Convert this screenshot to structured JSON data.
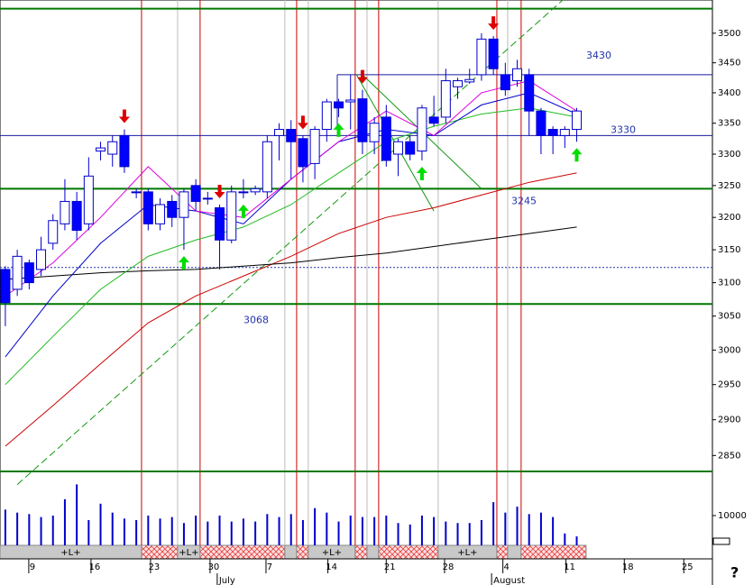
{
  "chart_data": {
    "type": "candlestick",
    "log_scale": true,
    "xlim": [
      -0.45,
      59.4
    ],
    "ylim": [
      2807,
      3557
    ],
    "yticks": [
      3500,
      3450,
      3400,
      3350,
      3300,
      3250,
      3200,
      3150,
      3100,
      3050,
      3000,
      2950,
      2900,
      2850
    ],
    "xticks": [
      {
        "value": 2.27,
        "label": "9"
      },
      {
        "value": 7.5,
        "label": "16"
      },
      {
        "value": 12.5,
        "label": "23"
      },
      {
        "value": 17.5,
        "label": "30"
      },
      {
        "value": 22.2,
        "label": "7"
      },
      {
        "value": 27.4,
        "label": "14"
      },
      {
        "value": 32.3,
        "label": "21"
      },
      {
        "value": 37.2,
        "label": "28"
      },
      {
        "value": 42.1,
        "label": "4"
      },
      {
        "value": 47.4,
        "label": "11"
      },
      {
        "value": 52.3,
        "label": "18"
      },
      {
        "value": 57.3,
        "label": "25"
      }
    ],
    "month_ticks": [
      {
        "value": 17.95,
        "label": "July"
      },
      {
        "value": 41.0,
        "label": "August"
      }
    ],
    "up_color": "#ffffff",
    "down_color": "#0000ff",
    "open": [
      3120,
      3090,
      3130,
      3120,
      3160,
      3190,
      3225,
      3190,
      3305,
      3300,
      3330,
      3240,
      3240,
      3190,
      3225,
      3200,
      3250,
      3230,
      3215,
      3165,
      3240,
      3240,
      3240,
      3330,
      3340,
      3325,
      3285,
      3340,
      3385,
      3385,
      3390,
      3320,
      3360,
      3300,
      3320,
      3305,
      3360,
      3360,
      3410,
      3418,
      3430,
      3490,
      3430,
      3420,
      3430,
      3370,
      3340,
      3330,
      3340
    ],
    "high": [
      3125,
      3150,
      3135,
      3170,
      3205,
      3260,
      3240,
      3295,
      3320,
      3330,
      3340,
      3245,
      3245,
      3230,
      3235,
      3245,
      3260,
      3240,
      3220,
      3250,
      3260,
      3250,
      3330,
      3350,
      3355,
      3330,
      3345,
      3390,
      3390,
      3430,
      3405,
      3360,
      3380,
      3325,
      3330,
      3380,
      3395,
      3440,
      3425,
      3440,
      3500,
      3495,
      3450,
      3455,
      3440,
      3375,
      3345,
      3345,
      3375
    ],
    "low": [
      3035,
      3080,
      3090,
      3110,
      3150,
      3180,
      3165,
      3180,
      3290,
      3280,
      3270,
      3230,
      3180,
      3180,
      3185,
      3150,
      3210,
      3220,
      3120,
      3160,
      3230,
      3235,
      3230,
      3290,
      3260,
      3255,
      3260,
      3320,
      3360,
      3340,
      3300,
      3300,
      3280,
      3265,
      3290,
      3290,
      3345,
      3350,
      3390,
      3415,
      3420,
      3430,
      3395,
      3410,
      3330,
      3300,
      3300,
      3310,
      3320
    ],
    "close": [
      3070,
      3140,
      3100,
      3150,
      3195,
      3225,
      3180,
      3265,
      3310,
      3320,
      3280,
      3240,
      3190,
      3220,
      3200,
      3240,
      3225,
      3230,
      3165,
      3240,
      3240,
      3245,
      3320,
      3340,
      3320,
      3280,
      3340,
      3385,
      3375,
      3388,
      3320,
      3350,
      3290,
      3320,
      3300,
      3375,
      3350,
      3420,
      3420,
      3422,
      3490,
      3440,
      3405,
      3440,
      3370,
      3330,
      3330,
      3340,
      3370
    ],
    "volume": [
      12000,
      11000,
      10500,
      9500,
      10000,
      15500,
      20500,
      8500,
      14000,
      11000,
      9000,
      8500,
      10000,
      9000,
      9500,
      7500,
      10000,
      8000,
      10000,
      8000,
      9000,
      8000,
      10500,
      9500,
      10500,
      8500,
      12500,
      11000,
      8000,
      10000,
      9500,
      9500,
      10000,
      7500,
      7000,
      10000,
      9500,
      8000,
      7500,
      7500,
      8500,
      14500,
      11000,
      13000,
      10500,
      11000,
      9500,
      4000,
      3000
    ],
    "vlim": [
      0,
      20900
    ],
    "volume_ticks": [
      10000
    ],
    "ma_x": [
      0,
      4,
      8,
      12,
      16,
      20,
      24,
      28,
      32,
      36,
      40,
      44,
      48
    ],
    "moving_averages": [
      {
        "color": "#cc0000",
        "values": [
          2863,
          2920,
          2980,
          3040,
          3080,
          3110,
          3140,
          3175,
          3200,
          3215,
          3235,
          3255,
          3270
        ]
      },
      {
        "color": "#000000",
        "values": [
          3105,
          3110,
          3115,
          3118,
          3120,
          3125,
          3130,
          3138,
          3145,
          3155,
          3165,
          3175,
          3185
        ]
      },
      {
        "color": "#22bb22",
        "values": [
          2950,
          3020,
          3090,
          3140,
          3165,
          3185,
          3220,
          3270,
          3320,
          3345,
          3365,
          3375,
          3360
        ]
      },
      {
        "color": "#0000cc",
        "values": [
          2990,
          3080,
          3160,
          3220,
          3210,
          3190,
          3260,
          3320,
          3340,
          3330,
          3380,
          3400,
          3365
        ]
      },
      {
        "color": "#dd00dd",
        "values": [
          3080,
          3130,
          3200,
          3280,
          3210,
          3200,
          3260,
          3320,
          3370,
          3330,
          3400,
          3420,
          3370
        ]
      }
    ],
    "trendlines": [
      {
        "x": [
          1,
          47
        ],
        "values": [
          2810,
          3560
        ],
        "dashed": true
      },
      {
        "x": [
          30,
          40
        ],
        "values": [
          3430,
          3245
        ],
        "dashed": false
      },
      {
        "x": [
          29.5,
          36
        ],
        "values": [
          3430,
          3210
        ],
        "dashed": false
      }
    ],
    "green_lines": [
      3542,
      3245,
      3068,
      2828
    ],
    "blue_lines": [
      3430,
      3330
    ],
    "dotted_lines": [
      3123
    ],
    "sell_signals": [
      10,
      18,
      25,
      30,
      41
    ],
    "buy_signals": [
      15,
      20,
      28,
      35,
      48
    ],
    "band_edges": [
      -0.45,
      11.44,
      14.47,
      16.36,
      23.48,
      24.47,
      25.45,
      29.39,
      30.38,
      31.36,
      36.36,
      41.29,
      42.2,
      43.33,
      48.79
    ],
    "band_labels": [
      "+L+",
      null,
      "+L+",
      null,
      null,
      null,
      "+L+",
      null,
      null,
      null,
      "+L+",
      null,
      null,
      null
    ],
    "help": "?"
  }
}
